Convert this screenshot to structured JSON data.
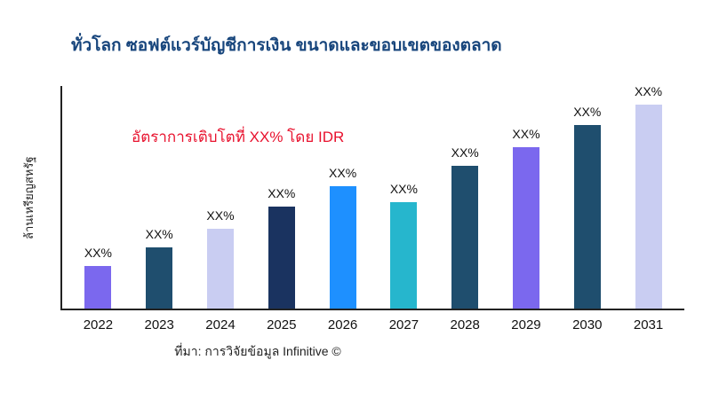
{
  "page": {
    "source_note": "ที่มา: การวิจัยข้อมูล Infinitive ©"
  },
  "chart_data": {
    "type": "bar",
    "title": "ทั่วโลก ซอฟต์แวร์บัญชีการเงิน ขนาดและขอบเขตของตลาด",
    "ylabel": "ล้านเหรียญสหรัฐ",
    "xlabel": "",
    "annotation": "อัตราการเติบโตที่ XX% โดย IDR",
    "annotation_color": "#e8112d",
    "title_color": "#17457c",
    "legend": "none",
    "grid": false,
    "categories": [
      "2022",
      "2023",
      "2024",
      "2025",
      "2026",
      "2027",
      "2028",
      "2029",
      "2030",
      "2031"
    ],
    "values": [
      21,
      30,
      39,
      50,
      60,
      52,
      70,
      79,
      90,
      100
    ],
    "value_unit": "relative-percent-of-max",
    "value_labels": [
      "XX%",
      "XX%",
      "XX%",
      "XX%",
      "XX%",
      "XX%",
      "XX%",
      "XX%",
      "XX%",
      "XX%"
    ],
    "bar_colors": [
      "#7b68ee",
      "#1f4e6e",
      "#c9cdf2",
      "#1a3360",
      "#1e90ff",
      "#26b6cd",
      "#1f4e6e",
      "#7b68ee",
      "#1f4e6e",
      "#c9cdf2"
    ],
    "ylim": [
      0,
      110
    ]
  }
}
